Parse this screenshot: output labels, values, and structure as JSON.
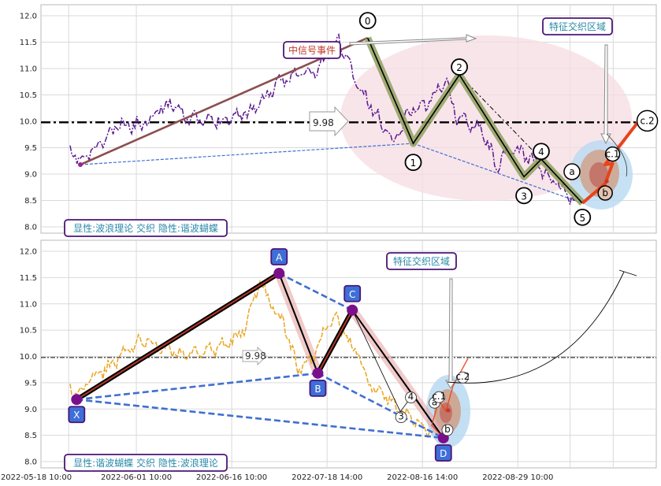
{
  "chart_data": [
    {
      "type": "line",
      "panel": "top",
      "ylim": [
        7.85,
        12.2
      ],
      "y_ticks": [
        8.0,
        8.5,
        9.0,
        9.5,
        10.0,
        10.5,
        11.0,
        11.5,
        12.0
      ],
      "reference_line": {
        "value": 9.98,
        "label": "9.98"
      },
      "annotations": {
        "signal_event": "中信号事件",
        "feature_zone": "特征交织区域",
        "legend_note": "显性:波浪理论 交织 隐性:谐波蝴蝶"
      },
      "wave_points": [
        {
          "label": "0",
          "x": 0.531,
          "y": 11.58
        },
        {
          "label": "1",
          "x": 0.605,
          "y": 9.58
        },
        {
          "label": "2",
          "x": 0.68,
          "y": 10.88
        },
        {
          "label": "3",
          "x": 0.785,
          "y": 8.95
        },
        {
          "label": "4",
          "x": 0.813,
          "y": 9.28
        },
        {
          "label": "5",
          "x": 0.88,
          "y": 8.45
        }
      ],
      "sub_wave_points": [
        {
          "label": "a",
          "x": 0.895,
          "y": 9.0
        },
        {
          "label": "b",
          "x": 0.917,
          "y": 8.82
        },
        {
          "label": "c.1",
          "x": 0.929,
          "y": 9.2
        },
        {
          "label": "c.2",
          "x": 0.97,
          "y": 9.98
        }
      ]
    },
    {
      "type": "line",
      "panel": "bottom",
      "ylim": [
        7.85,
        12.2
      ],
      "y_ticks": [
        8.0,
        8.5,
        9.0,
        9.5,
        10.0,
        10.5,
        11.0,
        11.5,
        12.0
      ],
      "reference_line": {
        "value": 9.98,
        "label": "9.98"
      },
      "annotations": {
        "feature_zone": "特征交织区域",
        "legend_note": "显性:谐波蝴蝶 交织 隐性:波浪理论"
      },
      "harmonic_points": [
        {
          "label": "X",
          "x": 0.058,
          "y": 9.18
        },
        {
          "label": "A",
          "x": 0.387,
          "y": 11.58
        },
        {
          "label": "B",
          "x": 0.45,
          "y": 9.68
        },
        {
          "label": "C",
          "x": 0.506,
          "y": 10.88
        },
        {
          "label": "D",
          "x": 0.654,
          "y": 8.45
        }
      ],
      "sub_points": [
        {
          "label": "3",
          "x": 0.584,
          "y": 8.95
        },
        {
          "label": "4",
          "x": 0.605,
          "y": 9.28
        },
        {
          "label": "a",
          "x": 0.655,
          "y": 9.0
        },
        {
          "label": "c.1",
          "x": 0.675,
          "y": 9.18
        },
        {
          "label": "b",
          "x": 0.676,
          "y": 8.78
        },
        {
          "label": "c.2",
          "x": 0.715,
          "y": 9.78
        }
      ]
    }
  ],
  "x_axis": {
    "tick_labels": [
      {
        "label": "2022-05-18 10:00",
        "x": 0.0
      },
      {
        "label": "2022-06-01 10:00",
        "x": 0.155
      },
      {
        "label": "2022-06-16 10:00",
        "x": 0.31
      },
      {
        "label": "2022-07-18 14:00",
        "x": 0.465
      },
      {
        "label": "2022-08-16 14:00",
        "x": 0.62
      },
      {
        "label": "2022-08-29 10:00",
        "x": 0.775
      }
    ]
  },
  "colors": {
    "price_top": "#5b1a8f",
    "price_bottom": "#e8a623",
    "wave_black": "#000000",
    "wave_band": "#8fa05f",
    "wave_brown": "#8b4f4f",
    "dashed_blue": "#3f6fd1",
    "impulse_red": "#e8431a",
    "pink_zone": "#f6dce3",
    "blue_zone": "#b9d9f1",
    "brown_zone": "#cf9f86",
    "label_border": "#4b1577",
    "label_text": "#2a8aa8",
    "signal_text": "#c0392b",
    "box_blue": "#3e6fd8"
  }
}
